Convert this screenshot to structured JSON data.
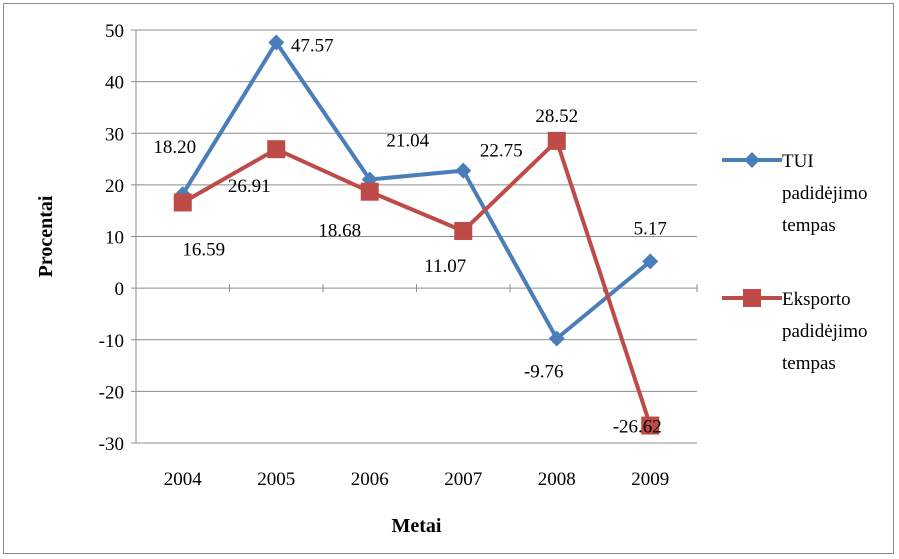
{
  "chart_data": {
    "type": "line",
    "title": "",
    "xlabel": "Metai",
    "ylabel": "Procentai",
    "categories": [
      "2004",
      "2005",
      "2006",
      "2007",
      "2008",
      "2009"
    ],
    "ylim": [
      -30,
      50
    ],
    "yticks": [
      "50",
      "40",
      "30",
      "20",
      "10",
      "0",
      "-10",
      "-20",
      "-30"
    ],
    "grid": "horizontal",
    "legend_position": "right",
    "series": [
      {
        "name": "TUI padidėjimo tempas",
        "legend_lines": [
          "TUI",
          "padidėjimo",
          "tempas"
        ],
        "color": "#4a7ebb",
        "marker": "diamond",
        "values": [
          18.2,
          47.57,
          21.04,
          22.75,
          -9.76,
          5.17
        ],
        "labels": [
          "18.20",
          "47.57",
          "21.04",
          "22.75",
          "-9.76",
          "5.17"
        ]
      },
      {
        "name": "Eksporto padidėjimo tempas",
        "legend_lines": [
          "Eksporto",
          "padidėjimo",
          "tempas"
        ],
        "color": "#be4b48",
        "marker": "square",
        "values": [
          16.59,
          26.91,
          18.68,
          11.07,
          28.52,
          -26.62
        ],
        "labels": [
          "16.59",
          "26.91",
          "18.68",
          "11.07",
          "28.52",
          "-26.62"
        ]
      }
    ]
  }
}
